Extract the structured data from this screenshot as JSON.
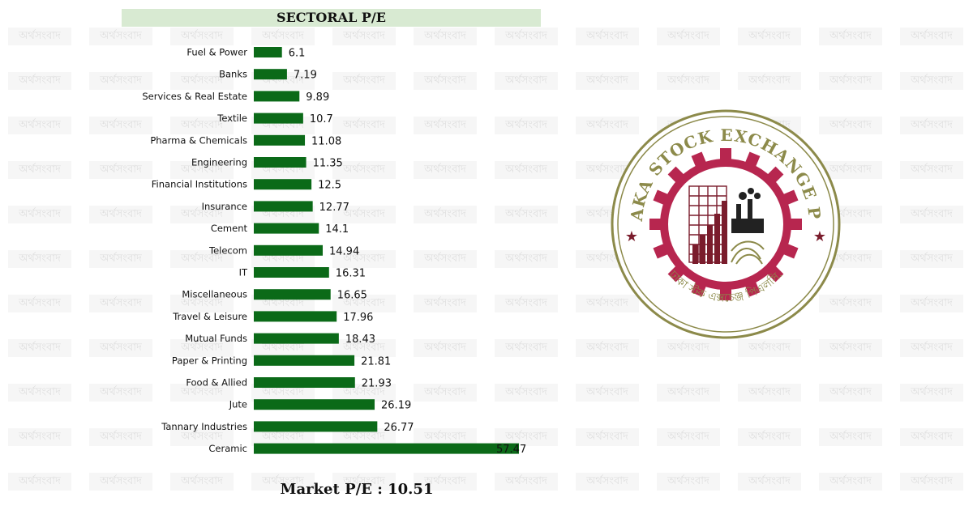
{
  "watermark": {
    "text": "অর্থসংবাদ"
  },
  "title": "SECTORAL P/E",
  "market_pe": {
    "label": "Market P/E",
    "separator": " : ",
    "value": "10.51"
  },
  "logo": {
    "name": "DHAKA STOCK EXCHANGE PLC.",
    "bangla_name": "ঢাকা স্টক এক্সচেঞ্জ পিএলসি.",
    "colors": {
      "ring": "#8c8a4a",
      "gear": "#b7264f",
      "mark": "#7a1c2c"
    }
  },
  "colors": {
    "bar": "#0b6a18",
    "title_bg": "#d8ead2"
  },
  "chart_data": {
    "type": "bar",
    "orientation": "horizontal",
    "title": "SECTORAL P/E",
    "xlabel": "",
    "ylabel": "",
    "categories": [
      "Fuel & Power",
      "Banks",
      "Services & Real Estate",
      "Textile",
      "Pharma & Chemicals",
      "Engineering",
      "Financial Institutions",
      "Insurance",
      "Cement",
      "Telecom",
      "IT",
      "Miscellaneous",
      "Travel & Leisure",
      "Mutual Funds",
      "Paper & Printing",
      "Food & Allied",
      "Jute",
      "Tannary Industries",
      "Ceramic"
    ],
    "values": [
      6.1,
      7.19,
      9.89,
      10.7,
      11.08,
      11.35,
      12.5,
      12.77,
      14.1,
      14.94,
      16.31,
      16.65,
      17.96,
      18.43,
      21.81,
      21.93,
      26.19,
      26.77,
      57.47
    ],
    "value_labels": [
      "6.1",
      "7.19",
      "9.89",
      "10.7",
      "11.08",
      "11.35",
      "12.5",
      "12.77",
      "14.1",
      "14.94",
      "16.31",
      "16.65",
      "17.96",
      "18.43",
      "21.81",
      "21.93",
      "26.19",
      "26.77",
      "57.47"
    ],
    "xlim": [
      0,
      57.47
    ],
    "grid": false,
    "legend": "none"
  }
}
